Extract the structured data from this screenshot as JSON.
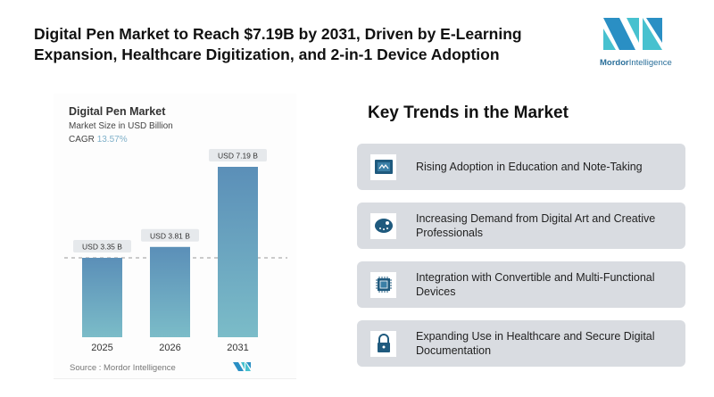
{
  "header": {
    "title": "Digital Pen Market to Reach $7.19B by 2031, Driven by E-Learning Expansion, Healthcare Digitization, and 2-in-1 Device Adoption"
  },
  "logo": {
    "name_a": "Mordor",
    "name_b": "Intelligence",
    "colors": [
      "#2a8fc4",
      "#47c1cf"
    ]
  },
  "chart_data": {
    "type": "bar",
    "title": "Digital Pen Market",
    "subtitle": "Market Size in USD Billion",
    "cagr_label": "CAGR",
    "cagr_value": "13.57%",
    "categories": [
      "2025",
      "2026",
      "2031"
    ],
    "values": [
      3.35,
      3.81,
      7.19
    ],
    "data_labels": [
      "USD 3.35 B",
      "USD 3.81 B",
      "USD 7.19 B"
    ],
    "ylim": [
      0,
      7.19
    ],
    "grid": false,
    "reference_line": 3.35,
    "bar_color_top": "#5b8fb8",
    "bar_color_bottom": "#7bbcc8",
    "source": "Source :  Mordor Intelligence"
  },
  "trends": {
    "title": "Key Trends in the Market",
    "items": [
      {
        "icon": "tablet-icon",
        "text": "Rising Adoption in Education and Note-Taking"
      },
      {
        "icon": "palette-icon",
        "text": "Increasing Demand from Digital Art and Creative Professionals"
      },
      {
        "icon": "chip-icon",
        "text": "Integration with Convertible and Multi-Functional Devices"
      },
      {
        "icon": "lock-icon",
        "text": "Expanding Use in Healthcare and Secure Digital Documentation"
      }
    ],
    "icon_color": "#1f5a7e",
    "card_color": "#d9dce1"
  }
}
